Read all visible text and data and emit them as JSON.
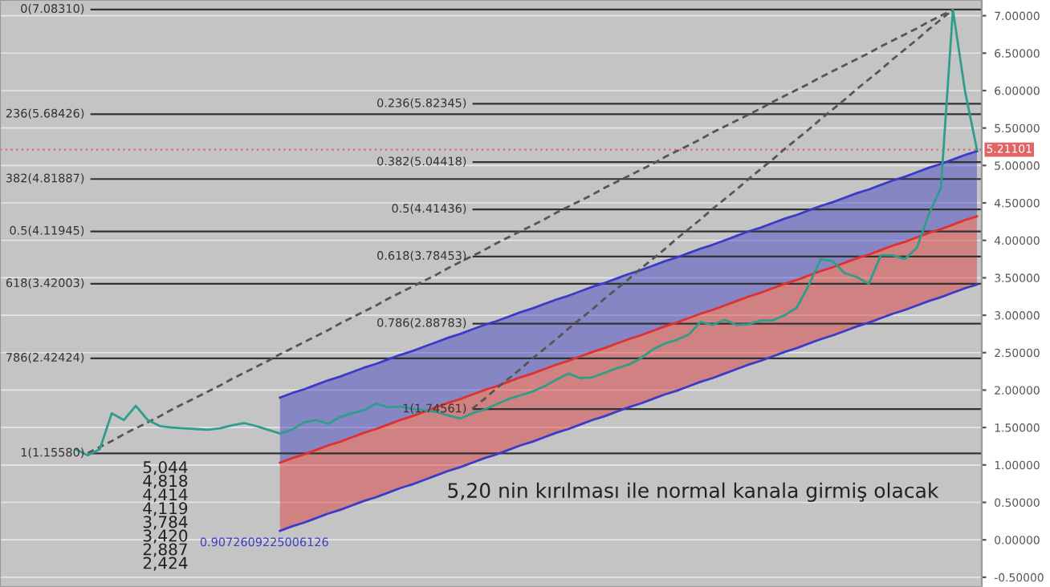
{
  "chart_data": {
    "type": "line",
    "ylim": [
      -0.63,
      7.21
    ],
    "categories": [
      null,
      null,
      null,
      null,
      null,
      null,
      null,
      null,
      null,
      null,
      null,
      null,
      null,
      null,
      null,
      null,
      null,
      null,
      null,
      null,
      null,
      null,
      null,
      null,
      null,
      null,
      null,
      null,
      null,
      null,
      null,
      null,
      null,
      null,
      null,
      null,
      null,
      null,
      null,
      null,
      null,
      null,
      null,
      null,
      null,
      null,
      null,
      null,
      null,
      null,
      null,
      null,
      null,
      null,
      null,
      null,
      null,
      null,
      null,
      null,
      null,
      null,
      null,
      null,
      null,
      null,
      null,
      null,
      null,
      null,
      null,
      null,
      null,
      null,
      null,
      null
    ],
    "yticks": [
      {
        "value": 7,
        "label": "7.00000"
      },
      {
        "value": 6.5,
        "label": "6.50000"
      },
      {
        "value": 6,
        "label": "6.00000"
      },
      {
        "value": 5.5,
        "label": "5.50000"
      },
      {
        "value": 5,
        "label": "5.00000"
      },
      {
        "value": 4.5,
        "label": "4.50000"
      },
      {
        "value": 4,
        "label": "4.00000"
      },
      {
        "value": 3.5,
        "label": "3.50000"
      },
      {
        "value": 3,
        "label": "3.00000"
      },
      {
        "value": 2.5,
        "label": "2.50000"
      },
      {
        "value": 2,
        "label": "2.00000"
      },
      {
        "value": 1.5,
        "label": "1.50000"
      },
      {
        "value": 1,
        "label": "1.00000"
      },
      {
        "value": 0.5,
        "label": "0.50000"
      },
      {
        "value": 0,
        "label": "0.00000"
      },
      {
        "value": -0.5,
        "label": "-0.50000"
      }
    ],
    "tick_labels": "y",
    "grid": "y",
    "series": [
      {
        "type": "line",
        "color": "#3b3bc8",
        "values": [
          null,
          null,
          null,
          null,
          null,
          null,
          null,
          null,
          null,
          null,
          null,
          null,
          null,
          null,
          null,
          null,
          null,
          1.9,
          1.96,
          2.01,
          2.07,
          2.13,
          2.18,
          2.24,
          2.3,
          2.35,
          2.41,
          2.47,
          2.52,
          2.58,
          2.64,
          2.7,
          2.75,
          2.81,
          2.87,
          2.92,
          2.98,
          3.04,
          3.09,
          3.15,
          3.21,
          3.26,
          3.32,
          3.38,
          3.43,
          3.49,
          3.55,
          3.6,
          3.66,
          3.72,
          3.77,
          3.83,
          3.89,
          3.94,
          4.0,
          4.06,
          4.12,
          4.17,
          4.23,
          4.29,
          4.34,
          4.4,
          4.46,
          4.51,
          4.57,
          4.63,
          4.68,
          4.74,
          4.8,
          4.85,
          4.91,
          4.97,
          5.02,
          5.08,
          5.14,
          5.19
        ],
        "lower": [
          null,
          null,
          null,
          null,
          null,
          null,
          null,
          null,
          null,
          null,
          null,
          null,
          null,
          null,
          null,
          null,
          null,
          1.03,
          1.09,
          1.14,
          1.2,
          1.26,
          1.31,
          1.37,
          1.43,
          1.48,
          1.54,
          1.6,
          1.65,
          1.71,
          1.77,
          1.83,
          1.88,
          1.94,
          2.0,
          2.05,
          2.11,
          2.17,
          2.22,
          2.28,
          2.34,
          2.39,
          2.45,
          2.51,
          2.56,
          2.62,
          2.68,
          2.73,
          2.79,
          2.85,
          2.9,
          2.96,
          3.02,
          3.07,
          3.13,
          3.19,
          3.25,
          3.3,
          3.36,
          3.42,
          3.47,
          3.53,
          3.59,
          3.64,
          3.7,
          3.76,
          3.81,
          3.87,
          3.93,
          3.98,
          4.04,
          4.1,
          4.15,
          4.21,
          4.27,
          4.32
        ],
        "upper": [
          null,
          null,
          null,
          null,
          null,
          null,
          null,
          null,
          null,
          null,
          null,
          null,
          null,
          null,
          null,
          null,
          null,
          1.9,
          1.96,
          2.01,
          2.07,
          2.13,
          2.18,
          2.24,
          2.3,
          2.35,
          2.41,
          2.47,
          2.52,
          2.58,
          2.64,
          2.7,
          2.75,
          2.81,
          2.87,
          2.92,
          2.98,
          3.04,
          3.09,
          3.15,
          3.21,
          3.26,
          3.32,
          3.38,
          3.43,
          3.49,
          3.55,
          3.6,
          3.66,
          3.72,
          3.77,
          3.83,
          3.89,
          3.94,
          4.0,
          4.06,
          4.12,
          4.17,
          4.23,
          4.29,
          4.34,
          4.4,
          4.46,
          4.51,
          4.57,
          4.63,
          4.68,
          4.74,
          4.8,
          4.85,
          4.91,
          4.97,
          5.02,
          5.08,
          5.14,
          5.19
        ]
      },
      {
        "type": "line",
        "color": "#e03030",
        "values": [
          null,
          null,
          null,
          null,
          null,
          null,
          null,
          null,
          null,
          null,
          null,
          null,
          null,
          null,
          null,
          null,
          null,
          1.03,
          1.09,
          1.14,
          1.2,
          1.26,
          1.31,
          1.37,
          1.43,
          1.48,
          1.54,
          1.6,
          1.65,
          1.71,
          1.77,
          1.83,
          1.88,
          1.94,
          2.0,
          2.05,
          2.11,
          2.17,
          2.22,
          2.28,
          2.34,
          2.39,
          2.45,
          2.51,
          2.56,
          2.62,
          2.68,
          2.73,
          2.79,
          2.85,
          2.9,
          2.96,
          3.02,
          3.07,
          3.13,
          3.19,
          3.25,
          3.3,
          3.36,
          3.42,
          3.47,
          3.53,
          3.59,
          3.64,
          3.7,
          3.76,
          3.81,
          3.87,
          3.93,
          3.98,
          4.04,
          4.1,
          4.15,
          4.21,
          4.27,
          4.32
        ],
        "lower": [
          null,
          null,
          null,
          null,
          null,
          null,
          null,
          null,
          null,
          null,
          null,
          null,
          null,
          null,
          null,
          null,
          null,
          0.12,
          0.18,
          0.23,
          0.29,
          0.35,
          0.4,
          0.46,
          0.52,
          0.57,
          0.63,
          0.69,
          0.74,
          0.8,
          0.86,
          0.92,
          0.97,
          1.03,
          1.09,
          1.14,
          1.2,
          1.26,
          1.31,
          1.37,
          1.43,
          1.48,
          1.54,
          1.6,
          1.65,
          1.71,
          1.77,
          1.82,
          1.88,
          1.94,
          1.99,
          2.05,
          2.11,
          2.16,
          2.22,
          2.28,
          2.34,
          2.39,
          2.45,
          2.51,
          2.56,
          2.62,
          2.68,
          2.73,
          2.79,
          2.85,
          2.9,
          2.96,
          3.02,
          3.07,
          3.13,
          3.19,
          3.24,
          3.3,
          3.36,
          3.41
        ],
        "upper": [
          null,
          null,
          null,
          null,
          null,
          null,
          null,
          null,
          null,
          null,
          null,
          null,
          null,
          null,
          null,
          null,
          null,
          1.03,
          1.09,
          1.14,
          1.2,
          1.26,
          1.31,
          1.37,
          1.43,
          1.48,
          1.54,
          1.6,
          1.65,
          1.71,
          1.77,
          1.83,
          1.88,
          1.94,
          2.0,
          2.05,
          2.11,
          2.17,
          2.22,
          2.28,
          2.34,
          2.39,
          2.45,
          2.51,
          2.56,
          2.62,
          2.68,
          2.73,
          2.79,
          2.85,
          2.9,
          2.96,
          3.02,
          3.07,
          3.13,
          3.19,
          3.25,
          3.3,
          3.36,
          3.42,
          3.47,
          3.53,
          3.59,
          3.64,
          3.7,
          3.76,
          3.81,
          3.87,
          3.93,
          3.98,
          4.04,
          4.1,
          4.15,
          4.21,
          4.27,
          4.32
        ]
      },
      {
        "type": "line",
        "color": "#3b3bc8",
        "values": [
          null,
          null,
          null,
          null,
          null,
          null,
          null,
          null,
          null,
          null,
          null,
          null,
          null,
          null,
          null,
          null,
          null,
          0.12,
          0.18,
          0.23,
          0.29,
          0.35,
          0.4,
          0.46,
          0.52,
          0.57,
          0.63,
          0.69,
          0.74,
          0.8,
          0.86,
          0.92,
          0.97,
          1.03,
          1.09,
          1.14,
          1.2,
          1.26,
          1.31,
          1.37,
          1.43,
          1.48,
          1.54,
          1.6,
          1.65,
          1.71,
          1.77,
          1.82,
          1.88,
          1.94,
          1.99,
          2.05,
          2.11,
          2.16,
          2.22,
          2.28,
          2.34,
          2.39,
          2.45,
          2.51,
          2.56,
          2.62,
          2.68,
          2.73,
          2.79,
          2.85,
          2.9,
          2.96,
          3.02,
          3.07,
          3.13,
          3.19,
          3.24,
          3.3,
          3.36,
          3.41
        ]
      },
      {
        "type": "line",
        "color": "#555555",
        "line_style": "dashed",
        "values": [
          null,
          1.16,
          1.24,
          1.32,
          1.41,
          1.49,
          1.57,
          1.65,
          1.74,
          1.82,
          1.9,
          1.98,
          2.06,
          2.15,
          2.23,
          2.31,
          2.39,
          2.48,
          2.56,
          2.64,
          2.72,
          2.8,
          2.89,
          2.97,
          3.05,
          3.13,
          3.22,
          3.3,
          3.38,
          3.46,
          3.54,
          3.63,
          3.71,
          3.79,
          3.87,
          3.96,
          4.04,
          4.12,
          4.2,
          4.28,
          4.37,
          4.45,
          4.53,
          4.61,
          4.7,
          4.78,
          4.86,
          4.94,
          5.02,
          5.11,
          5.19,
          5.27,
          5.35,
          5.44,
          5.52,
          5.6,
          5.68,
          5.76,
          5.85,
          5.93,
          6.01,
          6.09,
          6.18,
          6.26,
          6.34,
          6.42,
          6.5,
          6.59,
          6.67,
          6.75,
          6.83,
          6.92,
          7.0,
          7.08,
          null,
          null
        ]
      },
      {
        "type": "line",
        "color": "#555555",
        "line_style": "dashed",
        "values": [
          null,
          null,
          null,
          null,
          null,
          null,
          null,
          null,
          null,
          null,
          null,
          null,
          null,
          null,
          null,
          null,
          null,
          null,
          null,
          null,
          null,
          null,
          null,
          null,
          null,
          null,
          null,
          null,
          null,
          null,
          null,
          null,
          null,
          1.75,
          1.88,
          2.02,
          2.15,
          2.28,
          2.42,
          2.55,
          2.68,
          2.82,
          2.95,
          3.08,
          3.22,
          3.35,
          3.48,
          3.62,
          3.75,
          3.88,
          4.02,
          4.15,
          4.28,
          4.42,
          4.55,
          4.68,
          4.82,
          4.95,
          5.08,
          5.22,
          5.35,
          5.48,
          5.62,
          5.75,
          5.88,
          6.02,
          6.15,
          6.28,
          6.42,
          6.55,
          6.68,
          6.82,
          6.95,
          7.08,
          null,
          null
        ]
      },
      {
        "color": "#2e9e8a",
        "values": [
          1.21,
          1.13,
          1.21,
          1.69,
          1.6,
          1.79,
          1.6,
          1.52,
          1.5,
          1.49,
          1.48,
          1.47,
          1.49,
          1.53,
          1.56,
          1.52,
          1.47,
          1.42,
          1.47,
          1.57,
          1.6,
          1.55,
          1.64,
          1.69,
          1.73,
          1.82,
          1.77,
          1.78,
          1.75,
          1.73,
          1.71,
          1.66,
          1.62,
          1.69,
          1.74,
          1.81,
          1.88,
          1.93,
          1.98,
          2.05,
          2.14,
          2.22,
          2.16,
          2.17,
          2.23,
          2.29,
          2.34,
          2.42,
          2.54,
          2.62,
          2.67,
          2.74,
          2.91,
          2.87,
          2.94,
          2.87,
          2.88,
          2.93,
          2.93,
          3.0,
          3.1,
          3.4,
          3.75,
          3.72,
          3.56,
          3.51,
          3.42,
          3.8,
          3.8,
          3.75,
          3.9,
          4.35,
          4.7,
          7.08,
          6.0,
          5.21
        ]
      }
    ],
    "ref_lines": [
      {
        "axis": "y",
        "value": 5.21101,
        "label": "5.21101",
        "color": "#e06666",
        "line_style": "dotted"
      },
      {
        "axis": "y",
        "value": 7.0831,
        "label": "0(7.08310)",
        "color": "#333333"
      },
      {
        "axis": "y",
        "value": 5.68426,
        "label": "236(5.68426)",
        "color": "#333333"
      },
      {
        "axis": "y",
        "value": 4.81887,
        "label": "382(4.81887)",
        "color": "#333333"
      },
      {
        "axis": "y",
        "value": 4.11945,
        "label": "0.5(4.11945)",
        "color": "#333333"
      },
      {
        "axis": "y",
        "value": 3.42003,
        "label": "618(3.42003)",
        "color": "#333333"
      },
      {
        "axis": "y",
        "value": 2.42424,
        "label": "786(2.42424)",
        "color": "#333333"
      },
      {
        "axis": "y",
        "value": 1.1558,
        "label": "1(1.15580)",
        "color": "#333333"
      },
      {
        "axis": "y",
        "value": 5.82345,
        "label": "0.236(5.82345)",
        "color": "#333333"
      },
      {
        "axis": "y",
        "value": 5.04418,
        "label": "0.382(5.04418)",
        "color": "#333333"
      },
      {
        "axis": "y",
        "value": 4.41436,
        "label": "0.5(4.41436)",
        "color": "#333333"
      },
      {
        "axis": "y",
        "value": 3.78453,
        "label": "0.618(3.78453)",
        "color": "#333333"
      },
      {
        "axis": "y",
        "value": 2.88783,
        "label": "0.786(2.88783)",
        "color": "#333333"
      },
      {
        "axis": "y",
        "value": 1.74561,
        "label": "1(1.74561)",
        "color": "#333333"
      }
    ],
    "annotations": [
      "0.9072609225006126",
      "5,20 nin kırılması ile normal kanala girmiş olacak",
      "5,044\n4,818\n4,414\n4,119\n3,784\n3,420\n2,887\n2,424"
    ]
  }
}
